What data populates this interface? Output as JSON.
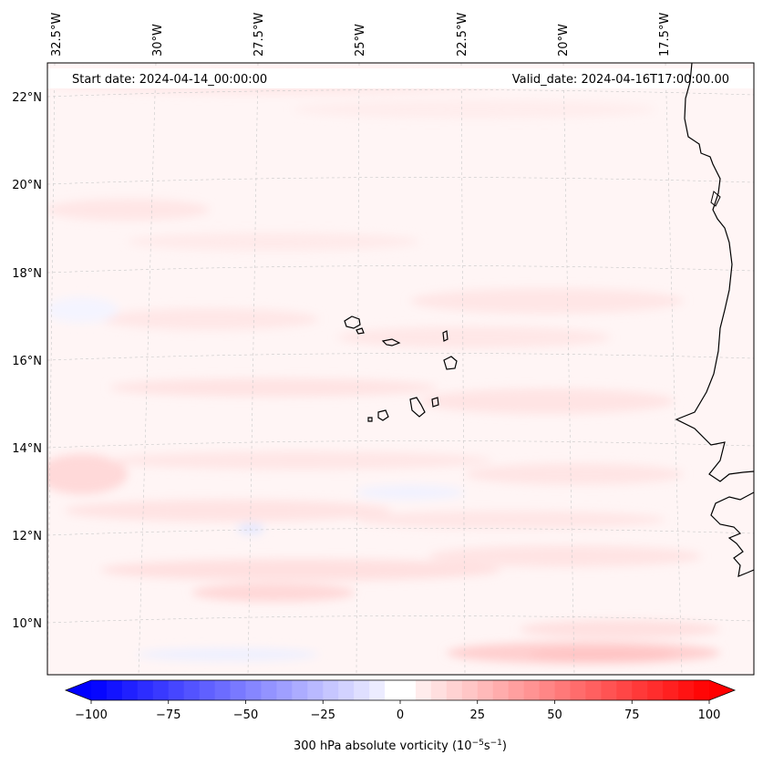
{
  "header": {
    "start_date": "Start date: 2024-04-14_00:00:00",
    "valid_date": "Valid_date: 2024-04-16T17:00:00.00"
  },
  "map": {
    "field": "300 hPa absolute vorticity",
    "lon_labels": [
      "32.5°W",
      "30°W",
      "27.5°W",
      "25°W",
      "22.5°W",
      "20°W",
      "17.5°W"
    ],
    "lat_labels": [
      "22°N",
      "20°N",
      "18°N",
      "16°N",
      "14°N",
      "12°N",
      "10°N"
    ],
    "background_color": "#fff5f5",
    "positive_color": "#ff0000",
    "negative_color": "#0000ff"
  },
  "colorbar": {
    "label_prefix": "300 hPa absolute vorticity (10",
    "label_exp1": "−5",
    "label_mid": "s",
    "label_exp2": "−1",
    "label_suffix": ")",
    "vmin": -100,
    "vmax": 100,
    "ticks": [
      "−100",
      "−75",
      "−50",
      "−25",
      "0",
      "25",
      "50",
      "75",
      "100"
    ]
  }
}
